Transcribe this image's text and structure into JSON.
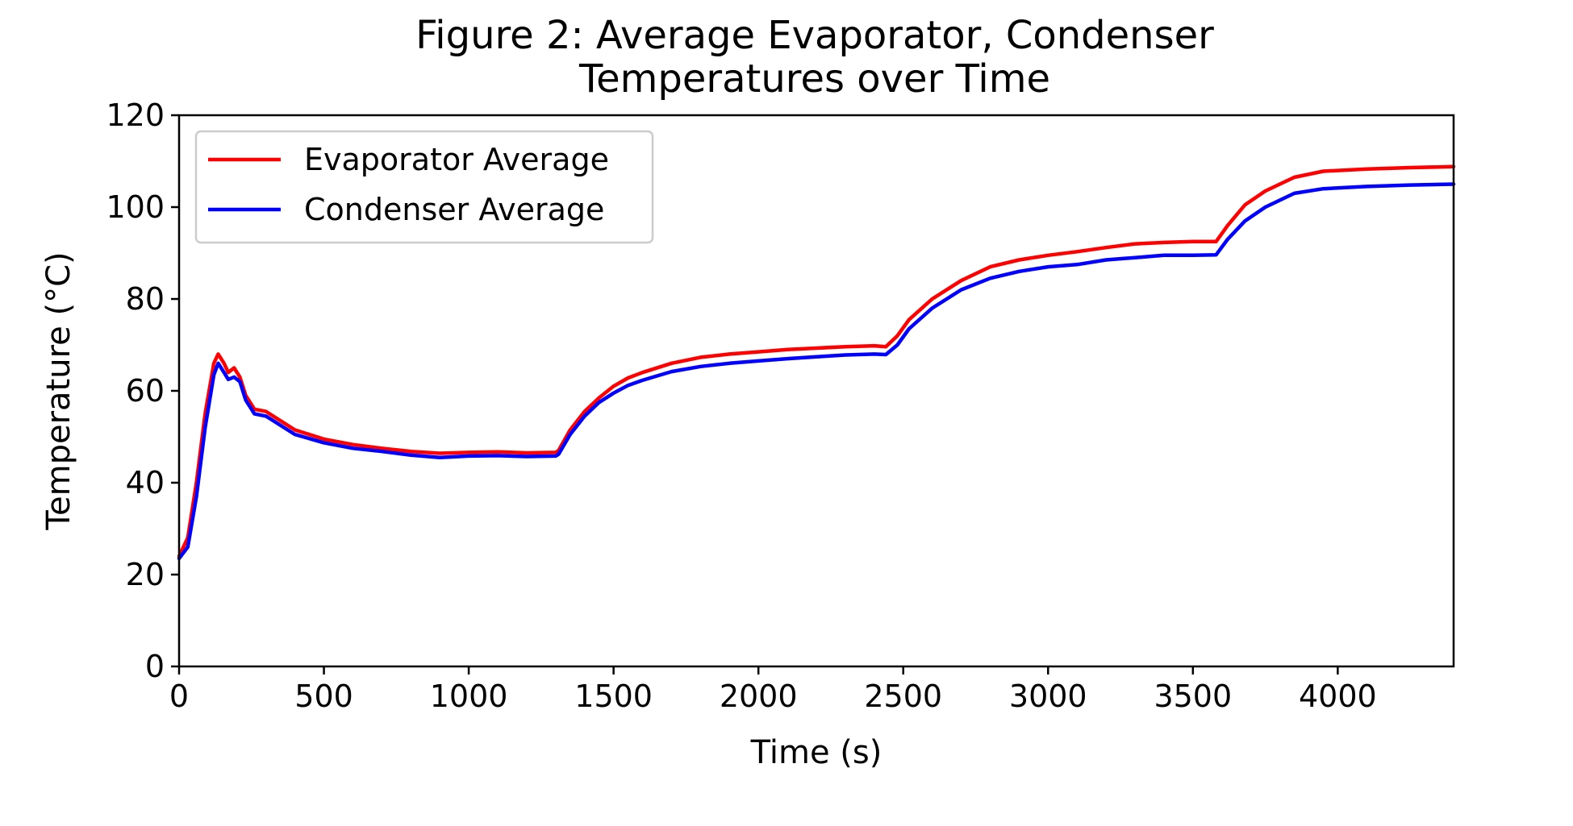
{
  "chart_data": {
    "type": "line",
    "title_lines": [
      "Figure 2: Average Evaporator, Condenser",
      "Temperatures over Time"
    ],
    "xlabel": "Time (s)",
    "ylabel": "Temperature (°C)",
    "xlim": [
      0,
      4400
    ],
    "ylim": [
      0,
      120
    ],
    "xticks": [
      0,
      500,
      1000,
      1500,
      2000,
      2500,
      3000,
      3500,
      4000
    ],
    "yticks": [
      0,
      20,
      40,
      60,
      80,
      100,
      120
    ],
    "grid": false,
    "legend_position": "upper-left",
    "series": [
      {
        "name": "Evaporator Average",
        "color": "#ff0000",
        "points": [
          [
            0,
            24
          ],
          [
            30,
            28
          ],
          [
            60,
            40
          ],
          [
            90,
            55
          ],
          [
            120,
            66
          ],
          [
            135,
            68
          ],
          [
            155,
            66
          ],
          [
            170,
            64
          ],
          [
            190,
            65
          ],
          [
            210,
            63
          ],
          [
            230,
            59
          ],
          [
            260,
            56
          ],
          [
            300,
            55.5
          ],
          [
            400,
            51.5
          ],
          [
            500,
            49.5
          ],
          [
            600,
            48.3
          ],
          [
            700,
            47.5
          ],
          [
            800,
            46.8
          ],
          [
            900,
            46.4
          ],
          [
            1000,
            46.6
          ],
          [
            1100,
            46.7
          ],
          [
            1200,
            46.5
          ],
          [
            1300,
            46.6
          ],
          [
            1310,
            47
          ],
          [
            1350,
            51.5
          ],
          [
            1400,
            55.5
          ],
          [
            1450,
            58.5
          ],
          [
            1500,
            61
          ],
          [
            1550,
            62.8
          ],
          [
            1600,
            64
          ],
          [
            1700,
            66
          ],
          [
            1800,
            67.3
          ],
          [
            1900,
            68
          ],
          [
            2000,
            68.5
          ],
          [
            2100,
            69
          ],
          [
            2200,
            69.3
          ],
          [
            2300,
            69.6
          ],
          [
            2400,
            69.8
          ],
          [
            2440,
            69.6
          ],
          [
            2480,
            72
          ],
          [
            2520,
            75.5
          ],
          [
            2600,
            80
          ],
          [
            2700,
            84
          ],
          [
            2800,
            87
          ],
          [
            2900,
            88.5
          ],
          [
            3000,
            89.5
          ],
          [
            3100,
            90.3
          ],
          [
            3200,
            91.2
          ],
          [
            3300,
            92
          ],
          [
            3400,
            92.3
          ],
          [
            3500,
            92.5
          ],
          [
            3580,
            92.5
          ],
          [
            3620,
            96
          ],
          [
            3680,
            100.5
          ],
          [
            3750,
            103.5
          ],
          [
            3850,
            106.5
          ],
          [
            3950,
            107.8
          ],
          [
            4100,
            108.3
          ],
          [
            4250,
            108.6
          ],
          [
            4400,
            108.8
          ]
        ]
      },
      {
        "name": "Condenser Average",
        "color": "#0000ff",
        "points": [
          [
            0,
            23.5
          ],
          [
            30,
            26
          ],
          [
            60,
            37
          ],
          [
            90,
            52
          ],
          [
            120,
            63.5
          ],
          [
            135,
            66
          ],
          [
            155,
            64
          ],
          [
            170,
            62.5
          ],
          [
            190,
            63
          ],
          [
            210,
            62
          ],
          [
            230,
            58
          ],
          [
            260,
            55
          ],
          [
            300,
            54.5
          ],
          [
            400,
            50.5
          ],
          [
            500,
            48.7
          ],
          [
            600,
            47.5
          ],
          [
            700,
            46.8
          ],
          [
            800,
            46
          ],
          [
            900,
            45.5
          ],
          [
            1000,
            45.8
          ],
          [
            1100,
            45.9
          ],
          [
            1200,
            45.7
          ],
          [
            1300,
            45.8
          ],
          [
            1310,
            46.2
          ],
          [
            1350,
            50.5
          ],
          [
            1400,
            54.5
          ],
          [
            1450,
            57.5
          ],
          [
            1500,
            59.5
          ],
          [
            1550,
            61.2
          ],
          [
            1600,
            62.3
          ],
          [
            1700,
            64.2
          ],
          [
            1800,
            65.3
          ],
          [
            1900,
            66
          ],
          [
            2000,
            66.5
          ],
          [
            2100,
            67
          ],
          [
            2200,
            67.4
          ],
          [
            2300,
            67.8
          ],
          [
            2400,
            68
          ],
          [
            2440,
            67.9
          ],
          [
            2480,
            70
          ],
          [
            2520,
            73.5
          ],
          [
            2600,
            78
          ],
          [
            2700,
            82
          ],
          [
            2800,
            84.5
          ],
          [
            2900,
            86
          ],
          [
            3000,
            87
          ],
          [
            3100,
            87.5
          ],
          [
            3200,
            88.5
          ],
          [
            3300,
            89
          ],
          [
            3400,
            89.5
          ],
          [
            3500,
            89.5
          ],
          [
            3580,
            89.6
          ],
          [
            3620,
            93
          ],
          [
            3680,
            97
          ],
          [
            3750,
            100
          ],
          [
            3850,
            103
          ],
          [
            3950,
            104
          ],
          [
            4100,
            104.5
          ],
          [
            4250,
            104.8
          ],
          [
            4400,
            105
          ]
        ]
      }
    ]
  }
}
